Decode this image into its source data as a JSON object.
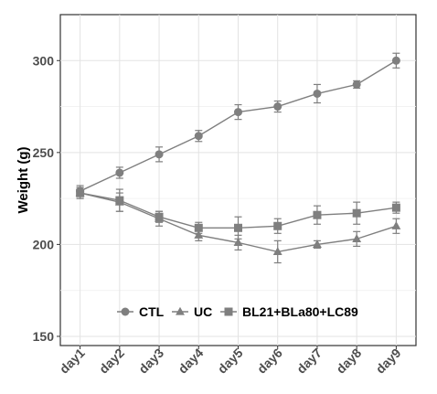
{
  "chart_data": {
    "type": "line",
    "title": "",
    "xlabel": "",
    "ylabel": "Weight (g)",
    "ylim": [
      145,
      325
    ],
    "yticks": [
      150,
      200,
      250,
      300
    ],
    "grid": true,
    "legend_position": "bottom-inside",
    "categories": [
      "day1",
      "day2",
      "day3",
      "day4",
      "day5",
      "day6",
      "day7",
      "day8",
      "day9"
    ],
    "series": [
      {
        "name": "CTL",
        "marker": "circle",
        "color": "#7f7f7f",
        "values": [
          229,
          239,
          249,
          259,
          272,
          275,
          282,
          287,
          300
        ],
        "error": [
          3,
          3,
          4,
          3,
          4,
          3,
          5,
          2,
          4
        ]
      },
      {
        "name": "UC",
        "marker": "triangle",
        "color": "#7f7f7f",
        "values": [
          228,
          223,
          214,
          205,
          201,
          196,
          200,
          203,
          210
        ],
        "error": [
          3,
          5,
          4,
          3,
          4,
          6,
          2,
          4,
          4
        ]
      },
      {
        "name": "BL21+BLa80+LC89",
        "marker": "square",
        "color": "#7f7f7f",
        "values": [
          228,
          224,
          215,
          209,
          209,
          210,
          216,
          217,
          220
        ],
        "error": [
          3,
          6,
          3,
          3,
          6,
          4,
          5,
          6,
          3
        ]
      }
    ]
  }
}
